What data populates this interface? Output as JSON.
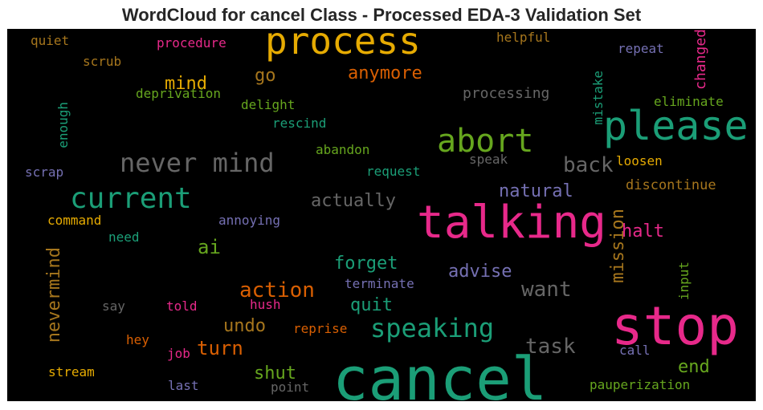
{
  "chart_data": {
    "type": "wordcloud",
    "title": "WordCloud for cancel Class - Processed EDA-3 Validation Set",
    "background": "#000000",
    "words": [
      {
        "text": "cancel",
        "color": "#1b9e77"
      },
      {
        "text": "stop",
        "color": "#e7298a"
      },
      {
        "text": "talking",
        "color": "#e7298a"
      },
      {
        "text": "please",
        "color": "#1b9e77"
      },
      {
        "text": "process",
        "color": "#e6ab02"
      },
      {
        "text": "abort",
        "color": "#66a61e"
      },
      {
        "text": "current",
        "color": "#1b9e77"
      },
      {
        "text": "never mind",
        "color": "#666666"
      },
      {
        "text": "speaking",
        "color": "#1b9e77"
      },
      {
        "text": "action",
        "color": "#d95f02"
      },
      {
        "text": "want",
        "color": "#666666"
      },
      {
        "text": "back",
        "color": "#666666"
      },
      {
        "text": "task",
        "color": "#666666"
      },
      {
        "text": "anymore",
        "color": "#d95f02"
      },
      {
        "text": "mission",
        "color": "#a6761d"
      },
      {
        "text": "nevermind",
        "color": "#a6761d"
      },
      {
        "text": "turn",
        "color": "#d95f02"
      },
      {
        "text": "mind",
        "color": "#e6ab02"
      },
      {
        "text": "ai",
        "color": "#66a61e"
      },
      {
        "text": "actually",
        "color": "#666666"
      },
      {
        "text": "natural",
        "color": "#7570b3"
      },
      {
        "text": "forget",
        "color": "#1b9e77"
      },
      {
        "text": "advise",
        "color": "#7570b3"
      },
      {
        "text": "go",
        "color": "#a6761d"
      },
      {
        "text": "halt",
        "color": "#e7298a"
      },
      {
        "text": "shut",
        "color": "#66a61e"
      },
      {
        "text": "end",
        "color": "#66a61e"
      },
      {
        "text": "undo",
        "color": "#a6761d"
      },
      {
        "text": "quit",
        "color": "#1b9e77"
      },
      {
        "text": "changed",
        "color": "#e7298a"
      },
      {
        "text": "mistake",
        "color": "#1b9e77"
      },
      {
        "text": "processing",
        "color": "#666666"
      },
      {
        "text": "discontinue",
        "color": "#a6761d"
      },
      {
        "text": "eliminate",
        "color": "#66a61e"
      },
      {
        "text": "helpful",
        "color": "#a6761d"
      },
      {
        "text": "repeat",
        "color": "#7570b3"
      },
      {
        "text": "procedure",
        "color": "#e7298a"
      },
      {
        "text": "quiet",
        "color": "#a6761d"
      },
      {
        "text": "scrub",
        "color": "#a6761d"
      },
      {
        "text": "deprivation",
        "color": "#66a61e"
      },
      {
        "text": "delight",
        "color": "#66a61e"
      },
      {
        "text": "rescind",
        "color": "#1b9e77"
      },
      {
        "text": "enough",
        "color": "#1b9e77"
      },
      {
        "text": "abandon",
        "color": "#66a61e"
      },
      {
        "text": "speak",
        "color": "#666666"
      },
      {
        "text": "loosen",
        "color": "#e6ab02"
      },
      {
        "text": "scrap",
        "color": "#7570b3"
      },
      {
        "text": "request",
        "color": "#1b9e77"
      },
      {
        "text": "command",
        "color": "#e6ab02"
      },
      {
        "text": "annoying",
        "color": "#7570b3"
      },
      {
        "text": "need",
        "color": "#1b9e77"
      },
      {
        "text": "terminate",
        "color": "#7570b3"
      },
      {
        "text": "input",
        "color": "#66a61e"
      },
      {
        "text": "say",
        "color": "#666666"
      },
      {
        "text": "told",
        "color": "#e7298a"
      },
      {
        "text": "hush",
        "color": "#e7298a"
      },
      {
        "text": "reprise",
        "color": "#d95f02"
      },
      {
        "text": "hey",
        "color": "#d95f02"
      },
      {
        "text": "job",
        "color": "#e7298a"
      },
      {
        "text": "call",
        "color": "#7570b3"
      },
      {
        "text": "stream",
        "color": "#e6ab02"
      },
      {
        "text": "last",
        "color": "#7570b3"
      },
      {
        "text": "point",
        "color": "#666666"
      },
      {
        "text": "pauperization",
        "color": "#66a61e"
      }
    ]
  }
}
